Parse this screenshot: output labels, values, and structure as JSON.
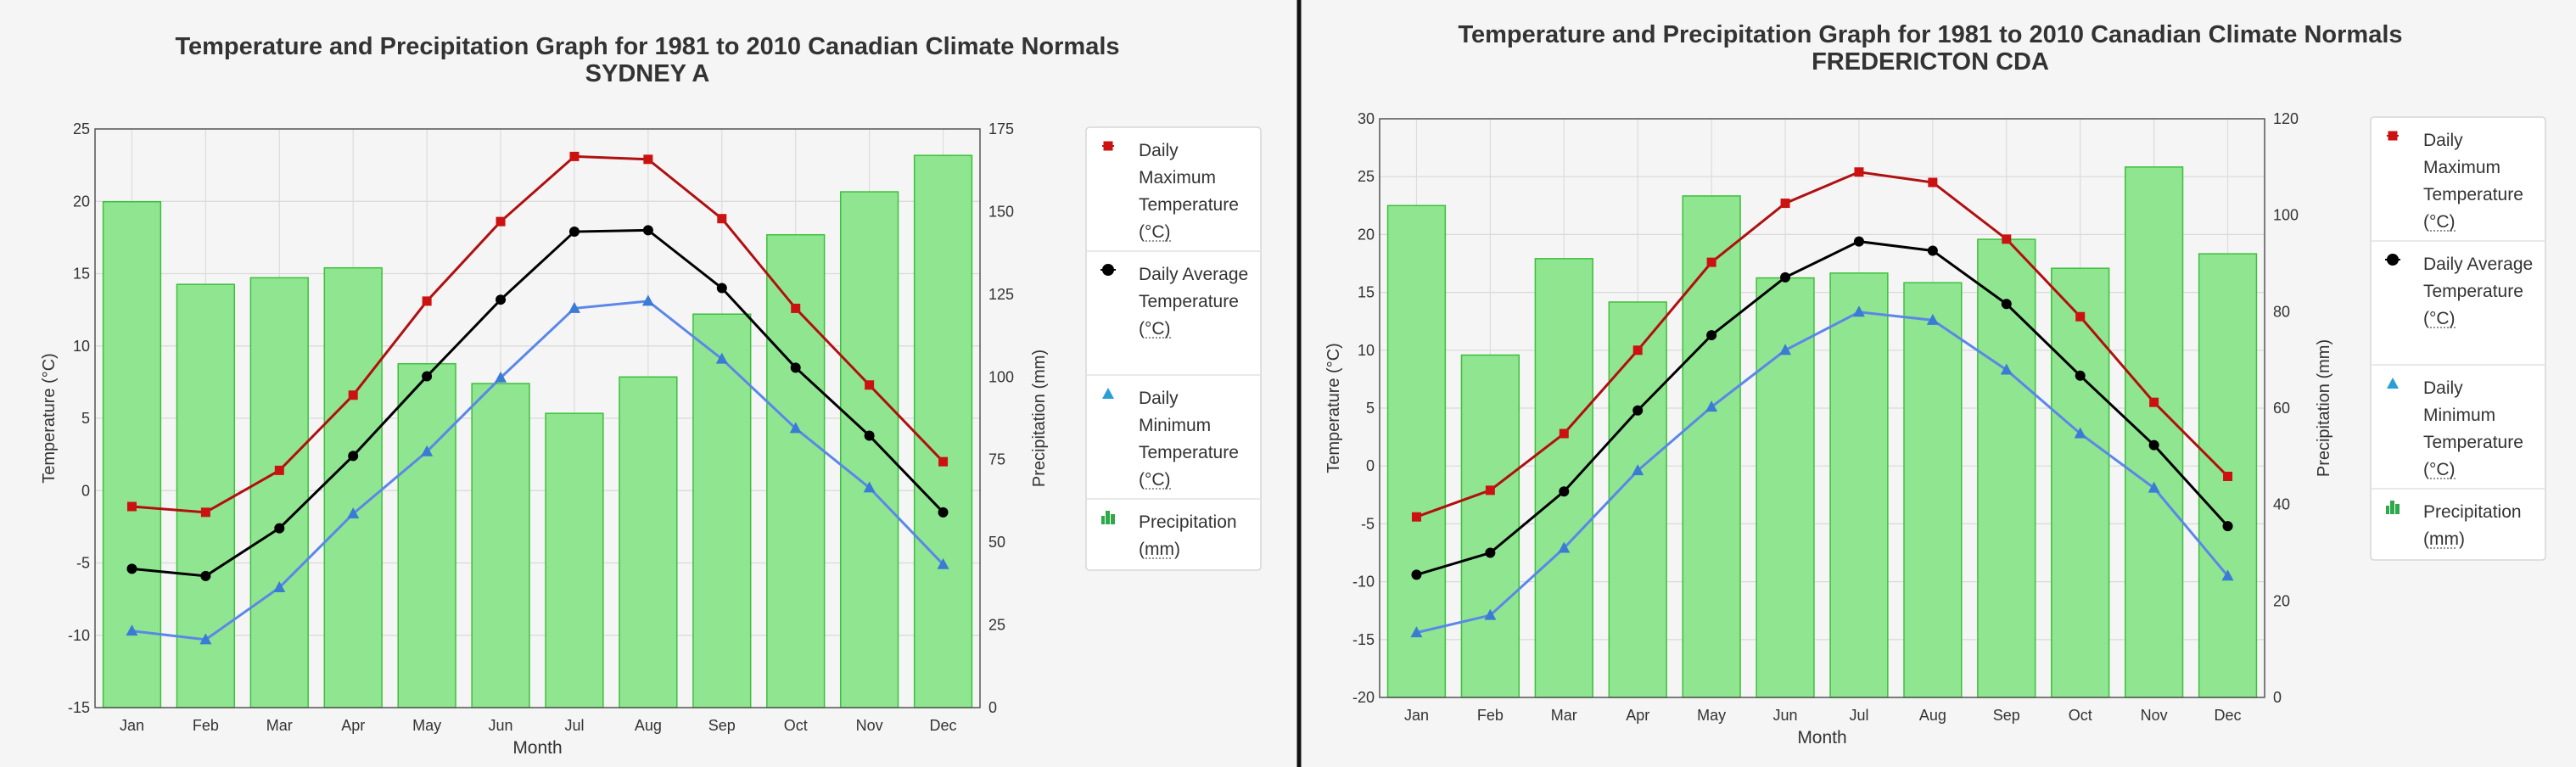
{
  "legend_labels": {
    "tmax": [
      "Daily",
      "Maximum",
      "Temperature",
      "(°C)"
    ],
    "tavg": [
      "Daily Average",
      "Temperature",
      "(°C)"
    ],
    "tmin": [
      "Daily",
      "Minimum",
      "Temperature",
      "(°C)"
    ],
    "precip": [
      "Precipitation",
      "(mm)"
    ]
  },
  "colors": {
    "tmax": "#b01010",
    "tmax_marker": "#cc1111",
    "tavg": "#000000",
    "tmin": "#5b87e8",
    "tmin_marker": "#3a7bd5",
    "bar_fill": "#90e590",
    "bar_stroke": "#3cc03c",
    "legend_precip_icon": "#2ea84a",
    "legend_tmin_icon": "#2a9fd6"
  },
  "chart_data": [
    {
      "type": "bar+line",
      "title": "Temperature and Precipitation Graph for 1981 to 2010 Canadian Climate Normals",
      "subtitle": "SYDNEY A",
      "xlabel": "Month",
      "ylabel_left": "Temperature (°C)",
      "ylabel_right": "Precipitation (mm)",
      "categories": [
        "Jan",
        "Feb",
        "Mar",
        "Apr",
        "May",
        "Jun",
        "Jul",
        "Aug",
        "Sep",
        "Oct",
        "Nov",
        "Dec"
      ],
      "ylim_left": [
        -15,
        25
      ],
      "yticks_left": [
        -15,
        -10,
        -5,
        0,
        5,
        10,
        15,
        20,
        25
      ],
      "ylim_right": [
        0,
        175
      ],
      "yticks_right": [
        0,
        25,
        50,
        75,
        100,
        125,
        150,
        175
      ],
      "grid": true,
      "legend_position": "right",
      "series": [
        {
          "key": "tmax",
          "type": "line",
          "marker": "square",
          "values": [
            -1.1,
            -1.5,
            1.4,
            6.6,
            13.1,
            18.6,
            23.1,
            22.9,
            18.8,
            12.6,
            7.3,
            2.0
          ]
        },
        {
          "key": "tavg",
          "type": "line",
          "marker": "circle",
          "values": [
            -5.4,
            -5.9,
            -2.6,
            2.4,
            7.9,
            13.2,
            17.9,
            18.0,
            14.0,
            8.5,
            3.8,
            -1.5
          ]
        },
        {
          "key": "tmin",
          "type": "line",
          "marker": "triangle",
          "values": [
            -9.7,
            -10.3,
            -6.7,
            -1.6,
            2.7,
            7.8,
            12.6,
            13.1,
            9.1,
            4.3,
            0.2,
            -5.1
          ]
        },
        {
          "key": "precip",
          "type": "bar",
          "axis": "right",
          "values": [
            153,
            128,
            130,
            133,
            104,
            98,
            89,
            100,
            119,
            143,
            156,
            167
          ]
        }
      ]
    },
    {
      "type": "bar+line",
      "title": "Temperature and Precipitation Graph for 1981 to 2010 Canadian Climate Normals",
      "subtitle": "FREDERICTON CDA",
      "xlabel": "Month",
      "ylabel_left": "Temperature (°C)",
      "ylabel_right": "Precipitation (mm)",
      "categories": [
        "Jan",
        "Feb",
        "Mar",
        "Apr",
        "May",
        "Jun",
        "Jul",
        "Aug",
        "Sep",
        "Oct",
        "Nov",
        "Dec"
      ],
      "ylim_left": [
        -20,
        30
      ],
      "yticks_left": [
        -20,
        -15,
        -10,
        -5,
        0,
        5,
        10,
        15,
        20,
        25,
        30
      ],
      "ylim_right": [
        0,
        120
      ],
      "yticks_right": [
        0,
        20,
        40,
        60,
        80,
        100,
        120
      ],
      "grid": true,
      "legend_position": "right",
      "series": [
        {
          "key": "tmax",
          "type": "line",
          "marker": "square",
          "values": [
            -4.4,
            -2.1,
            2.8,
            10.0,
            17.6,
            22.7,
            25.4,
            24.5,
            19.6,
            12.9,
            5.5,
            -0.9
          ]
        },
        {
          "key": "tavg",
          "type": "line",
          "marker": "circle",
          "values": [
            -9.4,
            -7.5,
            -2.2,
            4.8,
            11.3,
            16.3,
            19.4,
            18.6,
            14.0,
            7.8,
            1.8,
            -5.2
          ]
        },
        {
          "key": "tmin",
          "type": "line",
          "marker": "triangle",
          "values": [
            -14.4,
            -12.9,
            -7.1,
            -0.4,
            5.1,
            10.0,
            13.3,
            12.6,
            8.3,
            2.8,
            -1.9,
            -9.5
          ]
        },
        {
          "key": "precip",
          "type": "bar",
          "axis": "right",
          "values": [
            102,
            71,
            91,
            82,
            104,
            87,
            88,
            86,
            95,
            89,
            110,
            92
          ]
        }
      ]
    }
  ]
}
